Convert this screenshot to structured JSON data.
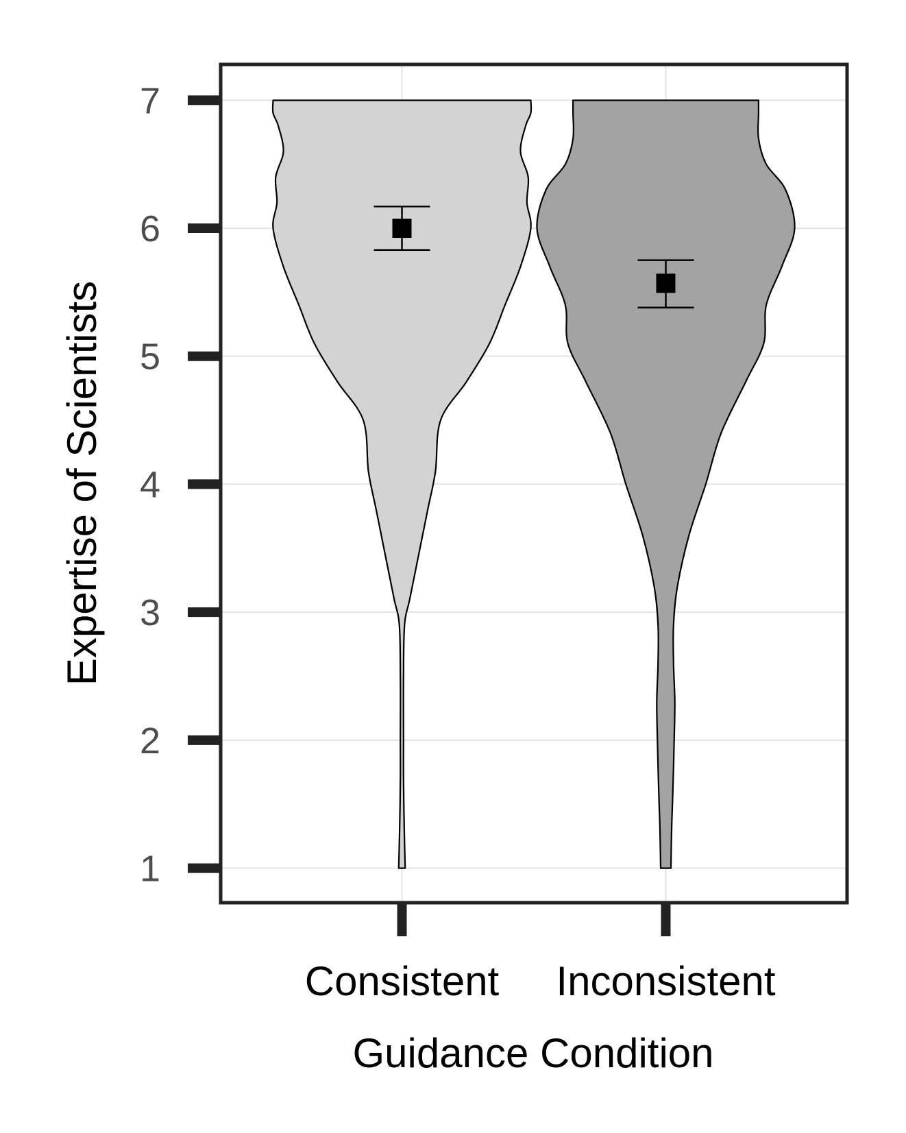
{
  "chart_data": {
    "type": "violin",
    "title": "",
    "xlabel": "Guidance Condition",
    "ylabel": "Expertise of Scientists",
    "ylim": [
      0.73,
      7.28
    ],
    "yticks": [
      "1",
      "2",
      "3",
      "4",
      "5",
      "6",
      "7"
    ],
    "grid": true,
    "categories": [
      "Consistent",
      "Inconsistent"
    ],
    "series": [
      {
        "category": "Consistent",
        "fill": "#d3d3d3",
        "mean": 6.0,
        "error_low": 5.83,
        "error_high": 6.17,
        "density_profile": [
          [
            1.0,
            0.025
          ],
          [
            1.3,
            0.018
          ],
          [
            1.7,
            0.012
          ],
          [
            2.0,
            0.012
          ],
          [
            2.5,
            0.012
          ],
          [
            2.9,
            0.02
          ],
          [
            3.1,
            0.06
          ],
          [
            3.4,
            0.12
          ],
          [
            3.8,
            0.2
          ],
          [
            4.1,
            0.26
          ],
          [
            4.5,
            0.3
          ],
          [
            4.8,
            0.5
          ],
          [
            5.1,
            0.68
          ],
          [
            5.4,
            0.8
          ],
          [
            5.7,
            0.92
          ],
          [
            6.0,
            1.0
          ],
          [
            6.2,
            0.97
          ],
          [
            6.4,
            0.98
          ],
          [
            6.6,
            0.92
          ],
          [
            6.8,
            0.96
          ],
          [
            6.9,
            1.0
          ],
          [
            7.0,
            1.0
          ]
        ]
      },
      {
        "category": "Inconsistent",
        "fill": "#a3a3a3",
        "mean": 5.57,
        "error_low": 5.38,
        "error_high": 5.75,
        "density_profile": [
          [
            1.0,
            0.04
          ],
          [
            1.3,
            0.045
          ],
          [
            1.6,
            0.055
          ],
          [
            2.0,
            0.065
          ],
          [
            2.3,
            0.07
          ],
          [
            2.6,
            0.06
          ],
          [
            2.9,
            0.06
          ],
          [
            3.2,
            0.09
          ],
          [
            3.6,
            0.18
          ],
          [
            4.0,
            0.31
          ],
          [
            4.4,
            0.43
          ],
          [
            4.8,
            0.62
          ],
          [
            5.1,
            0.76
          ],
          [
            5.4,
            0.78
          ],
          [
            5.7,
            0.9
          ],
          [
            6.0,
            1.0
          ],
          [
            6.3,
            0.93
          ],
          [
            6.5,
            0.78
          ],
          [
            6.7,
            0.72
          ],
          [
            6.9,
            0.72
          ],
          [
            7.0,
            0.72
          ]
        ]
      }
    ]
  }
}
